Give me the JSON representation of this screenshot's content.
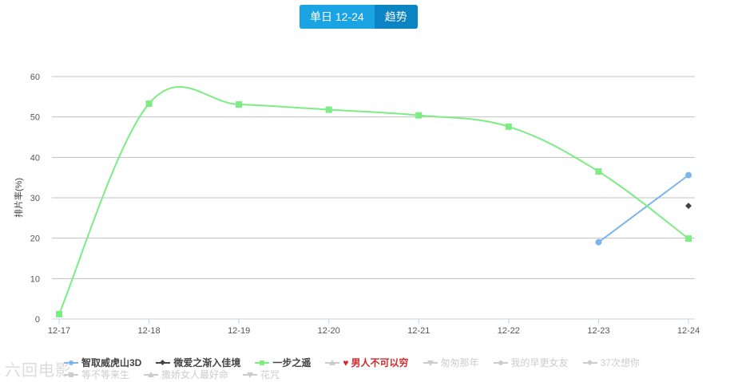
{
  "toggle": {
    "day_label": "单日 12-24",
    "trend_label": "趋势"
  },
  "chart_data": {
    "type": "line",
    "ylabel": "排片率(%)",
    "xlabel": "",
    "ylim": [
      0,
      60
    ],
    "yticks": [
      0,
      10,
      20,
      30,
      40,
      50,
      60
    ],
    "categories": [
      "12-17",
      "12-18",
      "12-19",
      "12-20",
      "12-21",
      "12-22",
      "12-23",
      "12-24"
    ],
    "grid": true,
    "legend_position": "bottom",
    "series": [
      {
        "name": "智取威虎山3D",
        "color": "#7cb5ec",
        "marker": "circle",
        "values": [
          null,
          null,
          null,
          null,
          null,
          null,
          19,
          35.6
        ],
        "smooth": false
      },
      {
        "name": "微爱之渐入佳境",
        "color": "#434348",
        "marker": "diamond",
        "values": [
          null,
          null,
          null,
          null,
          null,
          null,
          null,
          28
        ],
        "smooth": false
      },
      {
        "name": "一步之遥",
        "color": "#7bed83",
        "marker": "square",
        "values": [
          1.2,
          53.3,
          53.1,
          51.8,
          50.4,
          47.6,
          36.5,
          19.9
        ],
        "smooth": true
      }
    ],
    "legend_items": [
      {
        "name": "智取威虎山3D",
        "color": "#444444",
        "symbol_color": "#7cb5ec",
        "symbol": "circle"
      },
      {
        "name": "微爱之渐入佳境",
        "color": "#444444",
        "symbol_color": "#434348",
        "symbol": "diamond"
      },
      {
        "name": "一步之遥",
        "color": "#444444",
        "symbol_color": "#7bed83",
        "symbol": "square"
      },
      {
        "name": "男人不可以穷",
        "color": "#d22a2a",
        "symbol_color": "#cccccc",
        "symbol": "tri",
        "heart": true
      },
      {
        "name": "匆匆那年",
        "color": "#cccccc",
        "symbol_color": "#cccccc",
        "symbol": "tri-down"
      },
      {
        "name": "我的早更女友",
        "color": "#cccccc",
        "symbol_color": "#cccccc",
        "symbol": "circle"
      },
      {
        "name": "37次想你",
        "color": "#cccccc",
        "symbol_color": "#cccccc",
        "symbol": "diamond"
      },
      {
        "name": "等不等来生",
        "color": "#cccccc",
        "symbol_color": "#cccccc",
        "symbol": "square"
      },
      {
        "name": "撒娇女人最好命",
        "color": "#cccccc",
        "symbol_color": "#cccccc",
        "symbol": "tri"
      },
      {
        "name": "花咒",
        "color": "#cccccc",
        "symbol_color": "#cccccc",
        "symbol": "tri-down"
      }
    ]
  },
  "watermark": "六回电影"
}
